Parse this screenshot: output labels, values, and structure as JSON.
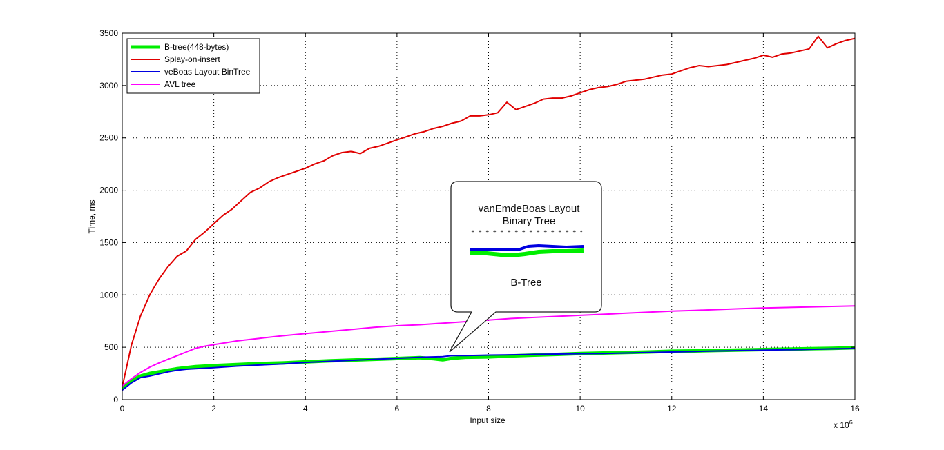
{
  "chart_data": {
    "type": "line",
    "xlabel": "Input size",
    "ylabel": "Time, ms",
    "x_multiplier": "x 10",
    "x_multiplier_exp": "6",
    "xlim": [
      0,
      16
    ],
    "ylim": [
      0,
      3500
    ],
    "xticks": [
      0,
      2,
      4,
      6,
      8,
      10,
      12,
      14,
      16
    ],
    "yticks": [
      0,
      500,
      1000,
      1500,
      2000,
      2500,
      3000,
      3500
    ],
    "grid": true,
    "legend_position": "top-left",
    "series": [
      {
        "name": "B-tree(448-bytes)",
        "color": "#00ee00",
        "x": [
          0,
          0.2,
          0.4,
          0.6,
          0.8,
          1.0,
          1.2,
          1.4,
          1.6,
          1.8,
          2.0,
          2.5,
          3.0,
          3.5,
          4.0,
          4.5,
          5.0,
          5.5,
          6.0,
          6.5,
          6.8,
          7.0,
          7.2,
          7.5,
          8.0,
          8.5,
          9.0,
          9.5,
          10.0,
          10.5,
          11.0,
          11.5,
          12.0,
          12.5,
          13.0,
          13.5,
          14.0,
          14.5,
          15.0,
          15.5,
          16.0
        ],
        "values": [
          110,
          180,
          225,
          250,
          265,
          280,
          295,
          305,
          315,
          320,
          325,
          335,
          345,
          350,
          360,
          370,
          378,
          385,
          392,
          400,
          390,
          380,
          395,
          405,
          408,
          418,
          425,
          432,
          440,
          445,
          450,
          455,
          462,
          465,
          470,
          474,
          478,
          482,
          486,
          490,
          495
        ]
      },
      {
        "name": "Splay-on-insert",
        "color": "#e00000",
        "x": [
          0,
          0.2,
          0.4,
          0.6,
          0.8,
          1.0,
          1.2,
          1.4,
          1.6,
          1.8,
          2.0,
          2.2,
          2.4,
          2.6,
          2.8,
          3.0,
          3.2,
          3.4,
          3.6,
          3.8,
          4.0,
          4.2,
          4.4,
          4.6,
          4.8,
          5.0,
          5.2,
          5.4,
          5.6,
          5.8,
          6.0,
          6.2,
          6.4,
          6.6,
          6.8,
          7.0,
          7.2,
          7.4,
          7.6,
          7.8,
          8.0,
          8.2,
          8.4,
          8.6,
          8.8,
          9.0,
          9.2,
          9.4,
          9.6,
          9.8,
          10.0,
          10.2,
          10.4,
          10.6,
          10.8,
          11.0,
          11.2,
          11.4,
          11.6,
          11.8,
          12.0,
          12.2,
          12.4,
          12.6,
          12.8,
          13.0,
          13.2,
          13.4,
          13.6,
          13.8,
          14.0,
          14.2,
          14.4,
          14.6,
          14.8,
          15.0,
          15.2,
          15.4,
          15.6,
          15.8,
          16.0
        ],
        "values": [
          120,
          520,
          800,
          1000,
          1150,
          1270,
          1370,
          1420,
          1530,
          1600,
          1680,
          1760,
          1820,
          1900,
          1980,
          2020,
          2080,
          2120,
          2150,
          2180,
          2210,
          2250,
          2280,
          2330,
          2360,
          2370,
          2350,
          2400,
          2420,
          2450,
          2480,
          2510,
          2540,
          2560,
          2590,
          2610,
          2640,
          2660,
          2710,
          2710,
          2720,
          2740,
          2840,
          2770,
          2800,
          2830,
          2870,
          2880,
          2880,
          2900,
          2930,
          2960,
          2980,
          2990,
          3010,
          3040,
          3050,
          3060,
          3080,
          3100,
          3110,
          3140,
          3170,
          3190,
          3180,
          3190,
          3200,
          3220,
          3240,
          3260,
          3290,
          3270,
          3300,
          3310,
          3330,
          3350,
          3470,
          3360,
          3400,
          3430,
          3450
        ]
      },
      {
        "name": "veBoas Layout BinTree",
        "color": "#0000e0",
        "x": [
          0,
          0.2,
          0.4,
          0.6,
          0.8,
          1.0,
          1.2,
          1.4,
          1.6,
          1.8,
          2.0,
          2.5,
          3.0,
          3.5,
          4.0,
          4.5,
          5.0,
          5.5,
          6.0,
          6.5,
          7.0,
          7.2,
          7.5,
          8.0,
          8.5,
          9.0,
          9.5,
          10.0,
          10.5,
          11.0,
          11.5,
          12.0,
          12.5,
          13.0,
          13.5,
          14.0,
          14.5,
          15.0,
          15.5,
          16.0
        ],
        "values": [
          90,
          160,
          210,
          225,
          245,
          265,
          280,
          290,
          295,
          300,
          305,
          320,
          330,
          340,
          355,
          365,
          375,
          385,
          395,
          405,
          410,
          420,
          420,
          425,
          428,
          432,
          435,
          438,
          440,
          445,
          450,
          455,
          460,
          465,
          468,
          472,
          476,
          480,
          485,
          488
        ]
      },
      {
        "name": "AVL tree",
        "color": "#ff00ff",
        "x": [
          0,
          0.2,
          0.4,
          0.6,
          0.8,
          1.0,
          1.2,
          1.4,
          1.6,
          1.8,
          2.0,
          2.5,
          3.0,
          3.5,
          4.0,
          4.5,
          5.0,
          5.5,
          6.0,
          6.5,
          7.0,
          7.5,
          8.0,
          8.5,
          9.0,
          9.5,
          10.0,
          10.5,
          11.0,
          11.5,
          12.0,
          12.5,
          13.0,
          13.5,
          14.0,
          14.5,
          15.0,
          15.5,
          16.0
        ],
        "values": [
          130,
          200,
          260,
          310,
          350,
          385,
          420,
          455,
          490,
          510,
          525,
          560,
          585,
          610,
          630,
          650,
          670,
          690,
          705,
          715,
          730,
          745,
          760,
          775,
          785,
          795,
          805,
          815,
          825,
          835,
          845,
          852,
          860,
          868,
          875,
          880,
          885,
          890,
          895
        ]
      }
    ],
    "callout": {
      "top_label_line1": "vanEmdeBoas Layout",
      "top_label_line2": "Binary Tree",
      "bottom_label": "B-Tree"
    }
  }
}
